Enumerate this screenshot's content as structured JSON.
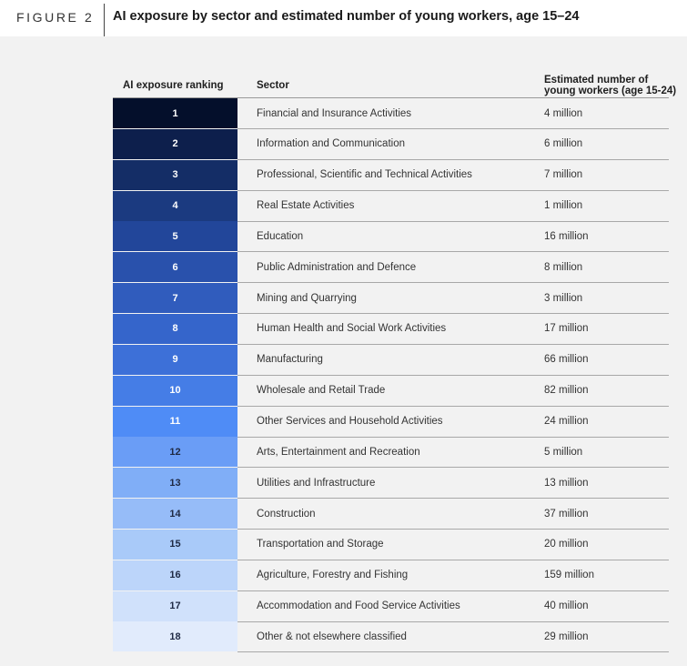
{
  "figure": {
    "label": "FIGURE 2",
    "title": "AI exposure by sector and estimated number of young workers, age 15–24"
  },
  "chart_data": {
    "type": "table",
    "columns": [
      "AI exposure ranking",
      "Sector",
      "Estimated number of young workers (age 15-24)"
    ],
    "header_workers_line1": "Estimated number of",
    "header_workers_line2": "young workers (age 15-24)",
    "rows": [
      {
        "rank": "1",
        "sector": "Financial and Insurance Activities",
        "workers": "4 million",
        "color": "#040f2b"
      },
      {
        "rank": "2",
        "sector": "Information and Communication",
        "workers": "6 million",
        "color": "#0d1f4c"
      },
      {
        "rank": "3",
        "sector": "Professional, Scientific and Technical Activities",
        "workers": "7 million",
        "color": "#142d66"
      },
      {
        "rank": "4",
        "sector": "Real Estate Activities",
        "workers": "1 million",
        "color": "#1b3a80"
      },
      {
        "rank": "5",
        "sector": "Education",
        "workers": "16 million",
        "color": "#22469a"
      },
      {
        "rank": "6",
        "sector": "Public Administration and Defence",
        "workers": "8 million",
        "color": "#2951ac"
      },
      {
        "rank": "7",
        "sector": "Mining and Quarrying",
        "workers": "3 million",
        "color": "#305cbd"
      },
      {
        "rank": "8",
        "sector": "Human Health and Social Work Activities",
        "workers": "17 million",
        "color": "#3565cb"
      },
      {
        "rank": "9",
        "sector": "Manufacturing",
        "workers": "66 million",
        "color": "#3d70d8"
      },
      {
        "rank": "10",
        "sector": "Wholesale and Retail Trade",
        "workers": "82 million",
        "color": "#457de6"
      },
      {
        "rank": "11",
        "sector": "Other Services and Household Activities",
        "workers": "24 million",
        "color": "#4f8cf6"
      },
      {
        "rank": "12",
        "sector": "Arts, Entertainment and Recreation",
        "workers": "5 million",
        "color": "#6a9df6"
      },
      {
        "rank": "13",
        "sector": "Utilities and Infrastructure",
        "workers": "13 million",
        "color": "#80aef7"
      },
      {
        "rank": "14",
        "sector": "Construction",
        "workers": "37 million",
        "color": "#96bcf8"
      },
      {
        "rank": "15",
        "sector": "Transportation and Storage",
        "workers": "20 million",
        "color": "#a9caf9"
      },
      {
        "rank": "16",
        "sector": "Agriculture, Forestry and Fishing",
        "workers": "159 million",
        "color": "#bcd5fa"
      },
      {
        "rank": "17",
        "sector": "Accommodation and Food Service Activities",
        "workers": "40 million",
        "color": "#d0e1fb"
      },
      {
        "rank": "18",
        "sector": "Other & not elsewhere classified",
        "workers": "29 million",
        "color": "#e1ebfc"
      }
    ]
  }
}
